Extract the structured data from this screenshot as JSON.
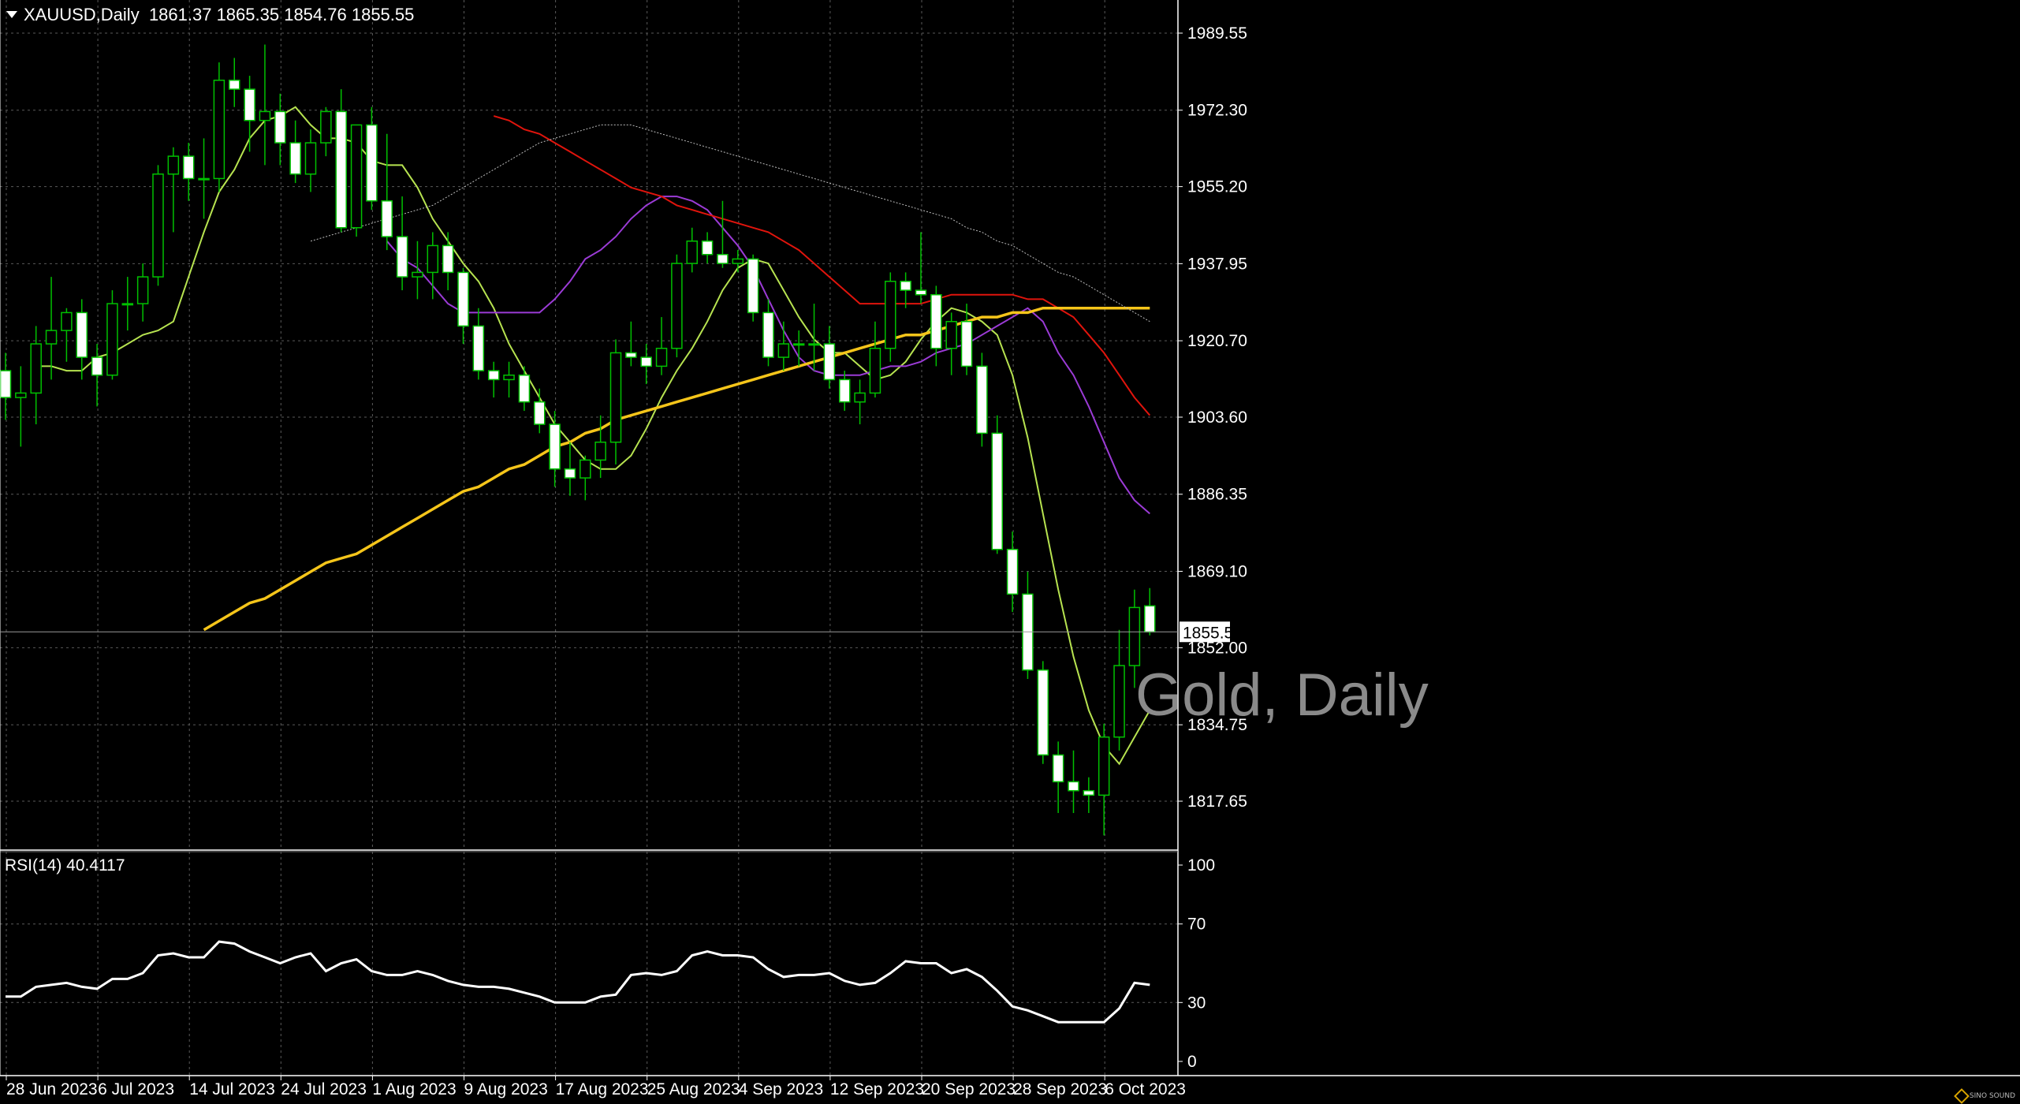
{
  "header": {
    "symbol": "XAUUSD,Daily",
    "ohlc": "1861.37 1865.35 1854.76 1855.55"
  },
  "watermark": "Gold, Daily",
  "rsi_label": "RSI(14) 40.4117",
  "logo": {
    "text": "SINO SOUND"
  },
  "colors": {
    "background": "#000000",
    "grid": "#5a5a5a",
    "bull_candle": "#00c000",
    "bear_candle_body": "#ffffff",
    "ma_fast": "#b7e350",
    "ma_medium": "#9b3bd6",
    "ma_slow": "#e0140c",
    "ma_long": "#f5c51a",
    "ma_very_long": "#bdbdbd",
    "rsi": "#ffffff"
  },
  "chart_data": [
    {
      "type": "candlestick",
      "title": "XAUUSD,Daily",
      "current_price_label": "1855.55",
      "ylim": [
        1810.0,
        1996.0
      ],
      "y_ticks": [
        "1989.55",
        "1972.30",
        "1955.20",
        "1937.95",
        "1920.70",
        "1903.60",
        "1886.35",
        "1869.10",
        "1852.00",
        "1834.75",
        "1817.65"
      ],
      "x_ticks": [
        {
          "label": "28 Jun 2023",
          "index": 0
        },
        {
          "label": "6 Jul 2023",
          "index": 6
        },
        {
          "label": "14 Jul 2023",
          "index": 12
        },
        {
          "label": "24 Jul 2023",
          "index": 18
        },
        {
          "label": "1 Aug 2023",
          "index": 24
        },
        {
          "label": "9 Aug 2023",
          "index": 30
        },
        {
          "label": "17 Aug 2023",
          "index": 36
        },
        {
          "label": "25 Aug 2023",
          "index": 42
        },
        {
          "label": "4 Sep 2023",
          "index": 48
        },
        {
          "label": "12 Sep 2023",
          "index": 54
        },
        {
          "label": "20 Sep 2023",
          "index": 60
        },
        {
          "label": "28 Sep 2023",
          "index": 66
        },
        {
          "label": "6 Oct 2023",
          "index": 72
        }
      ],
      "ohlc": [
        [
          1914,
          1918,
          1903,
          1908
        ],
        [
          1908,
          1915,
          1897,
          1909
        ],
        [
          1909,
          1924,
          1902,
          1920
        ],
        [
          1920,
          1935,
          1912,
          1923
        ],
        [
          1923,
          1928,
          1916,
          1927
        ],
        [
          1927,
          1930,
          1912,
          1917
        ],
        [
          1917,
          1920,
          1906,
          1913
        ],
        [
          1913,
          1932,
          1912,
          1929
        ],
        [
          1929,
          1935,
          1923,
          1929
        ],
        [
          1929,
          1938,
          1925,
          1935
        ],
        [
          1935,
          1960,
          1933,
          1958
        ],
        [
          1958,
          1964,
          1945,
          1962
        ],
        [
          1962,
          1965,
          1952,
          1957
        ],
        [
          1957,
          1966,
          1948,
          1957
        ],
        [
          1957,
          1983,
          1954,
          1979
        ],
        [
          1979,
          1984,
          1973,
          1977
        ],
        [
          1977,
          1980,
          1963,
          1970
        ],
        [
          1970,
          1987,
          1960,
          1972
        ],
        [
          1972,
          1976,
          1960,
          1965
        ],
        [
          1965,
          1970,
          1956,
          1958
        ],
        [
          1958,
          1968,
          1954,
          1965
        ],
        [
          1965,
          1973,
          1962,
          1972
        ],
        [
          1972,
          1977,
          1945,
          1946
        ],
        [
          1946,
          1969,
          1944,
          1969
        ],
        [
          1969,
          1973,
          1950,
          1952
        ],
        [
          1952,
          1967,
          1941,
          1944
        ],
        [
          1944,
          1953,
          1932,
          1935
        ],
        [
          1935,
          1943,
          1930,
          1936
        ],
        [
          1936,
          1945,
          1930,
          1942
        ],
        [
          1942,
          1945,
          1932,
          1936
        ],
        [
          1936,
          1937,
          1920,
          1924
        ],
        [
          1924,
          1928,
          1912,
          1914
        ],
        [
          1914,
          1916,
          1908,
          1912
        ],
        [
          1912,
          1916,
          1908,
          1913
        ],
        [
          1913,
          1915,
          1905,
          1907
        ],
        [
          1907,
          1910,
          1900,
          1902
        ],
        [
          1902,
          1905,
          1888,
          1892
        ],
        [
          1892,
          1898,
          1886,
          1890
        ],
        [
          1890,
          1895,
          1885,
          1894
        ],
        [
          1894,
          1904,
          1890,
          1898
        ],
        [
          1898,
          1921,
          1893,
          1918
        ],
        [
          1918,
          1925,
          1915,
          1917
        ],
        [
          1917,
          1920,
          1911,
          1915
        ],
        [
          1915,
          1926,
          1913,
          1919
        ],
        [
          1919,
          1940,
          1917,
          1938
        ],
        [
          1938,
          1946,
          1936,
          1943
        ],
        [
          1943,
          1945,
          1938,
          1940
        ],
        [
          1940,
          1952,
          1937,
          1938
        ],
        [
          1938,
          1941,
          1936,
          1939
        ],
        [
          1939,
          1940,
          1925,
          1927
        ],
        [
          1927,
          1930,
          1915,
          1917
        ],
        [
          1917,
          1925,
          1914,
          1920
        ],
        [
          1920,
          1923,
          1915,
          1920
        ],
        [
          1920,
          1929,
          1914,
          1920
        ],
        [
          1920,
          1924,
          1910,
          1912
        ],
        [
          1912,
          1914,
          1905,
          1907
        ],
        [
          1907,
          1912,
          1902,
          1909
        ],
        [
          1909,
          1925,
          1908,
          1919
        ],
        [
          1919,
          1936,
          1916,
          1934
        ],
        [
          1934,
          1936,
          1928,
          1932
        ],
        [
          1932,
          1945,
          1929,
          1931
        ],
        [
          1931,
          1933,
          1915,
          1919
        ],
        [
          1919,
          1927,
          1913,
          1925
        ],
        [
          1925,
          1929,
          1913,
          1915
        ],
        [
          1915,
          1918,
          1897,
          1900
        ],
        [
          1900,
          1904,
          1873,
          1874
        ],
        [
          1874,
          1878,
          1860,
          1864
        ],
        [
          1864,
          1869,
          1845,
          1847
        ],
        [
          1847,
          1849,
          1826,
          1828
        ],
        [
          1828,
          1831,
          1815,
          1822
        ],
        [
          1822,
          1829,
          1815,
          1820
        ],
        [
          1820,
          1823,
          1815,
          1819
        ],
        [
          1819,
          1835,
          1810,
          1832
        ],
        [
          1832,
          1856,
          1829,
          1848
        ],
        [
          1848,
          1865,
          1843,
          1861
        ],
        [
          1861.37,
          1865.35,
          1854.76,
          1855.55
        ]
      ],
      "series": [
        {
          "color": "#b7e350",
          "values": [
            1915,
            1915,
            1914,
            1914,
            1917,
            1918,
            1920,
            1922,
            1923,
            1925,
            1935,
            1945,
            1954,
            1959,
            1966,
            1970,
            1971,
            1973,
            1969,
            1966,
            1966,
            1965,
            1961,
            1960,
            1960,
            1955,
            1948,
            1943,
            1938,
            1934,
            1928,
            1920,
            1914,
            1908,
            1902,
            1898,
            1894,
            1892,
            1892,
            1895,
            1901,
            1908,
            1914,
            1919,
            1925,
            1932,
            1937,
            1939,
            1938,
            1932,
            1926,
            1921,
            1918,
            1918,
            1915,
            1912,
            1913,
            1916,
            1921,
            1925,
            1928,
            1927,
            1925,
            1922,
            1913,
            1899,
            1882,
            1865,
            1850,
            1838,
            1830,
            1826,
            1832,
            1838
          ]
        },
        {
          "color": "#9b3bd6",
          "values": [
            1943,
            1939,
            1937,
            1933,
            1929,
            1927,
            1927,
            1927,
            1927,
            1927,
            1927,
            1930,
            1934,
            1939,
            1941,
            1944,
            1948,
            1951,
            1953,
            1953,
            1952,
            1950,
            1946,
            1942,
            1937,
            1930,
            1923,
            1917,
            1914,
            1913,
            1913,
            1913,
            1914,
            1915,
            1915,
            1916,
            1918,
            1919,
            1920,
            1922,
            1924,
            1926,
            1928,
            1925,
            1918,
            1913,
            1906,
            1898,
            1890,
            1885,
            1882
          ]
        },
        {
          "color": "#e0140c",
          "values": [
            1971,
            1970,
            1968,
            1967,
            1965,
            1963,
            1961,
            1959,
            1957,
            1955,
            1954,
            1953,
            1951,
            1950,
            1949,
            1948,
            1947,
            1946,
            1945,
            1943,
            1941,
            1938,
            1935,
            1932,
            1929,
            1929,
            1929,
            1929,
            1929,
            1930,
            1931,
            1931,
            1931,
            1931,
            1931,
            1930,
            1930,
            1928,
            1926,
            1922,
            1918,
            1913,
            1908,
            1904
          ]
        },
        {
          "color": "#f5c51a",
          "values": [
            1856,
            1858,
            1860,
            1862,
            1863,
            1865,
            1867,
            1869,
            1871,
            1872,
            1873,
            1875,
            1877,
            1879,
            1881,
            1883,
            1885,
            1887,
            1888,
            1890,
            1892,
            1893,
            1895,
            1897,
            1898,
            1900,
            1901,
            1903,
            1904,
            1905,
            1906,
            1907,
            1908,
            1909,
            1910,
            1911,
            1912,
            1913,
            1914,
            1915,
            1916,
            1917,
            1918,
            1919,
            1920,
            1921,
            1922,
            1922,
            1923,
            1924,
            1925,
            1926,
            1926,
            1927,
            1927,
            1928,
            1928,
            1928,
            1928,
            1928,
            1928,
            1928,
            1928
          ]
        },
        {
          "color": "#bdbdbd",
          "values": [
            1943,
            1944,
            1945,
            1946,
            1947,
            1948,
            1949,
            1950,
            1951,
            1953,
            1955,
            1957,
            1959,
            1961,
            1963,
            1965,
            1966,
            1967,
            1968,
            1969,
            1969,
            1969,
            1968,
            1967,
            1966,
            1965,
            1964,
            1963,
            1962,
            1961,
            1960,
            1959,
            1958,
            1957,
            1956,
            1955,
            1954,
            1953,
            1952,
            1951,
            1950,
            1949,
            1948,
            1946,
            1945,
            1943,
            1942,
            1940,
            1938,
            1936,
            1935,
            1933,
            1931,
            1929,
            1927,
            1925
          ]
        }
      ]
    },
    {
      "type": "line",
      "title": "RSI(14) 40.4117",
      "ylim": [
        0,
        100
      ],
      "y_ticks": [
        "100",
        "70",
        "30",
        "0"
      ],
      "values": [
        33,
        33,
        38,
        39,
        40,
        38,
        37,
        42,
        42,
        45,
        54,
        55,
        53,
        53,
        61,
        60,
        56,
        53,
        50,
        53,
        55,
        46,
        50,
        52,
        46,
        44,
        44,
        46,
        44,
        41,
        39,
        38,
        38,
        37,
        35,
        33,
        30,
        30,
        30,
        33,
        34,
        44,
        45,
        44,
        46,
        54,
        56,
        54,
        54,
        53,
        47,
        43,
        44,
        44,
        45,
        41,
        39,
        40,
        45,
        51,
        50,
        50,
        45,
        47,
        43,
        36,
        28,
        26,
        23,
        20,
        20,
        20,
        20,
        27,
        40,
        39
      ]
    }
  ]
}
